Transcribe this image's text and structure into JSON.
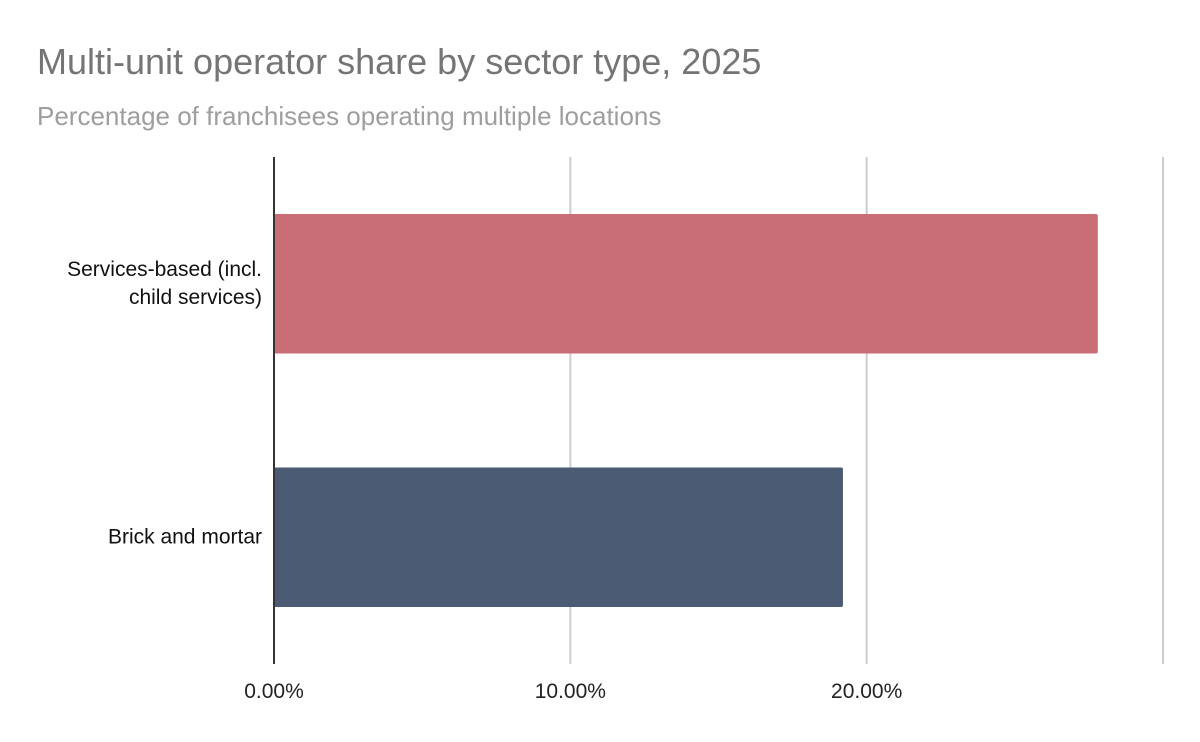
{
  "chart_data": {
    "type": "bar",
    "orientation": "horizontal",
    "title": "Multi-unit operator share by sector type, 2025",
    "subtitle": "Percentage of franchisees operating multiple locations",
    "xlabel": "",
    "ylabel": "",
    "categories": [
      [
        "Services-based (incl.",
        "child services)"
      ],
      [
        "Brick and mortar"
      ]
    ],
    "values": [
      27.8,
      19.2
    ],
    "colors": [
      "#c96d77",
      "#4a5b73"
    ],
    "xlim": [
      0,
      30
    ],
    "xticks": [
      {
        "value": 0,
        "label": "0.00%"
      },
      {
        "value": 10,
        "label": "10.00%"
      },
      {
        "value": 20,
        "label": "20.00%"
      }
    ],
    "gridlines": [
      0,
      10,
      20,
      30
    ],
    "grid": true,
    "legend": "none"
  }
}
